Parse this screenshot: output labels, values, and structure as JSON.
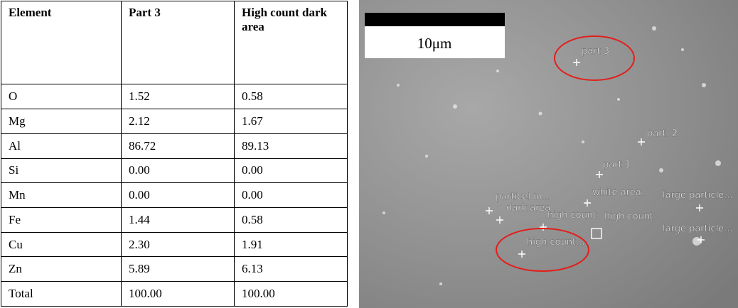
{
  "table": {
    "header": [
      "Element",
      "Part 3",
      "High count dark area"
    ],
    "rows": [
      [
        "O",
        "1.52",
        "0.58"
      ],
      [
        "Mg",
        "2.12",
        "1.67"
      ],
      [
        "Al",
        "86.72",
        "89.13"
      ],
      [
        "Si",
        "0.00",
        "0.00"
      ],
      [
        "Mn",
        "0.00",
        "0.00"
      ],
      [
        "Fe",
        "1.44",
        "0.58"
      ],
      [
        "Cu",
        "2.30",
        "1.91"
      ],
      [
        "Zn",
        "5.89",
        "6.13"
      ],
      [
        "Total",
        "100.00",
        "100.00"
      ]
    ]
  },
  "image": {
    "scale_bar": "10μm",
    "labels": [
      "part 3",
      "part. 2",
      "part 1",
      "white area...",
      "large particle...",
      "particel in...",
      "dark area",
      "high count",
      "high count",
      "large particle...",
      "high count..."
    ]
  }
}
